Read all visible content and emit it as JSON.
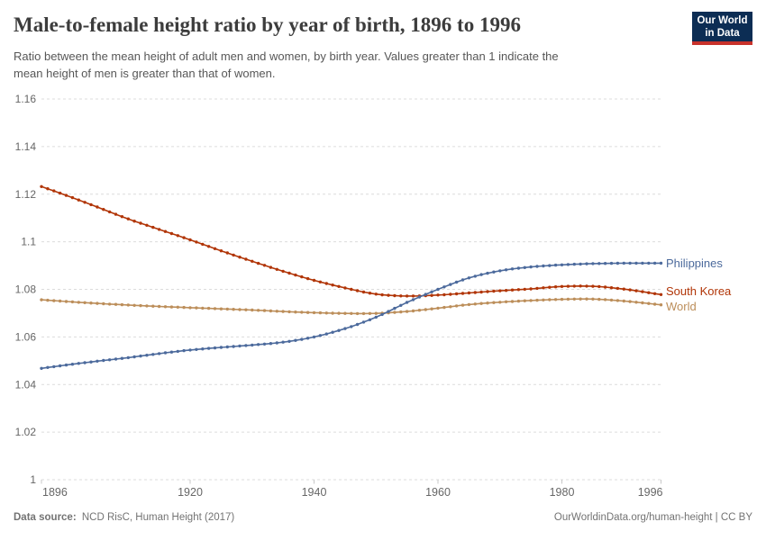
{
  "header": {
    "title": "Male-to-female height ratio by year of birth, 1896 to 1996",
    "subtitle_line1": "Ratio between the mean height of adult men and women, by birth year. Values greater than 1 indicate the",
    "subtitle_line2": "mean height of men is greater than that of women.",
    "logo": {
      "line1": "Our World",
      "line2": "in Data",
      "bg_color": "#0c2d54",
      "accent_color": "#c8322b"
    }
  },
  "chart_data": {
    "type": "line",
    "title": "Male-to-female height ratio by year of birth, 1896 to 1996",
    "xlabel": "",
    "ylabel": "",
    "xlim": [
      1896,
      1996
    ],
    "ylim": [
      1,
      1.16
    ],
    "grid": "horizontal-dashed",
    "legend_position": "line-end-labels",
    "x_ticks": {
      "values": [
        1896,
        1920,
        1940,
        1960,
        1980,
        1996
      ],
      "labels": [
        "1896",
        "1920",
        "1940",
        "1960",
        "1980",
        "1996"
      ]
    },
    "y_ticks": {
      "values": [
        1,
        1.02,
        1.04,
        1.06,
        1.08,
        1.1,
        1.12,
        1.14,
        1.16
      ],
      "labels": [
        "1",
        "1.02",
        "1.04",
        "1.06",
        "1.08",
        "1.1",
        "1.12",
        "1.14",
        "1.16"
      ]
    },
    "x": [
      1896,
      1900,
      1905,
      1910,
      1915,
      1920,
      1925,
      1930,
      1935,
      1940,
      1945,
      1950,
      1955,
      1960,
      1965,
      1970,
      1975,
      1980,
      1985,
      1990,
      1996
    ],
    "series": [
      {
        "name": "World",
        "color": "#BC8E5A",
        "end_label_dy": 2,
        "values": [
          1.0756,
          1.0749,
          1.0741,
          1.0734,
          1.0728,
          1.0723,
          1.0718,
          1.0713,
          1.0707,
          1.0702,
          1.0699,
          1.0699,
          1.0707,
          1.0721,
          1.0736,
          1.0746,
          1.0753,
          1.0758,
          1.0759,
          1.0751,
          1.0735
        ]
      },
      {
        "name": "South Korea",
        "color": "#B13507",
        "end_label_dy": -4,
        "values": [
          1.1232,
          1.1195,
          1.1146,
          1.1096,
          1.1052,
          1.1008,
          1.0962,
          1.0918,
          1.0876,
          1.0838,
          1.0806,
          1.078,
          1.0772,
          1.0776,
          1.0785,
          1.0794,
          1.0802,
          1.0812,
          1.0813,
          1.0801,
          1.0778
        ]
      },
      {
        "name": "Philippines",
        "color": "#4C6A9C",
        "end_label_dy": 0,
        "values": [
          1.0468,
          1.0482,
          1.0498,
          1.0513,
          1.053,
          1.0545,
          1.0556,
          1.0566,
          1.0578,
          1.06,
          1.0635,
          1.0683,
          1.0745,
          1.08,
          1.0848,
          1.0878,
          1.0894,
          1.0903,
          1.0908,
          1.091,
          1.091
        ]
      }
    ],
    "colors": {
      "grid": "#dcdcdc",
      "tick_label": "#666666",
      "axis_tick": "#c8c8c8"
    }
  },
  "footer": {
    "datasource_label": "Data source:",
    "datasource_value": "NCD RisC, Human Height (2017)",
    "credit_link": "OurWorldinData.org/human-height",
    "credit_rest": " | CC BY"
  }
}
